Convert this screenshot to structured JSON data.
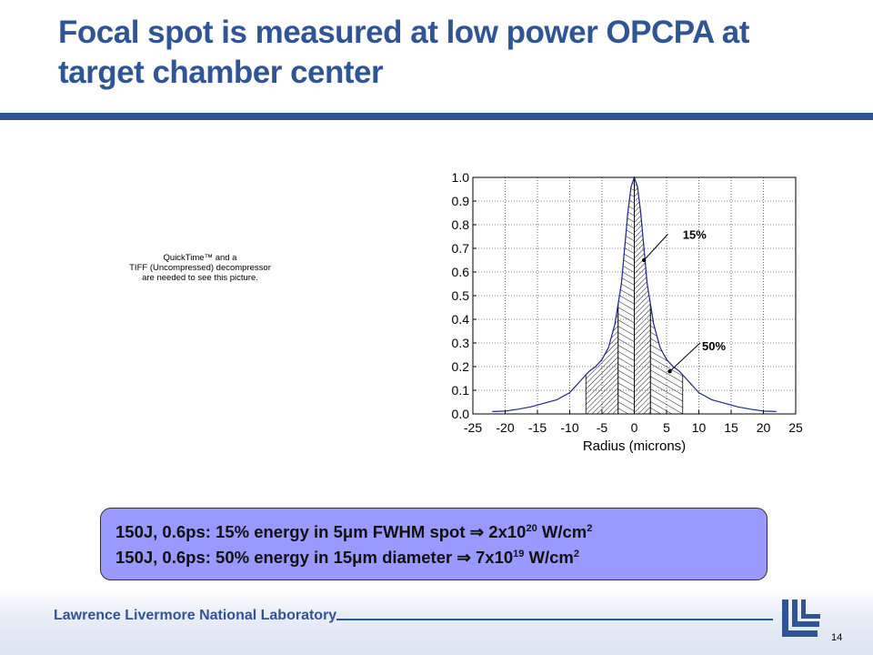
{
  "slide": {
    "title": "Focal spot is measured at low power OPCPA at target chamber center",
    "image_placeholder": [
      "QuickTime™ and a",
      "TIFF (Uncompressed) decompressor",
      "are needed to see this picture."
    ],
    "callout": {
      "line1": {
        "pre": "150J, 0.6ps: 15% energy in 5μm FWHM spot ",
        "arrow": "⇒",
        "val": " 2x10",
        "exp": "20",
        "unit": " W/cm",
        "unit_exp": "2"
      },
      "line2": {
        "pre": "150J, 0.6ps: 50% energy in 15μm diameter ",
        "arrow": "⇒",
        "val": " 7x10",
        "exp": "19",
        "unit": " W/cm",
        "unit_exp": "2"
      }
    },
    "footer": {
      "lab_name": "Lawrence Livermore National Laboratory",
      "page_number": "14"
    },
    "colors": {
      "brand_blue": "#2f5597",
      "callout_fill": "#9999ff",
      "curve": "#1f2a8a"
    }
  },
  "chart_data": {
    "type": "line",
    "xlabel": "Radius (microns)",
    "ylabel": "",
    "xlim": [
      -25,
      25
    ],
    "ylim": [
      0,
      1.0
    ],
    "x_ticks": [
      "-25",
      "-20",
      "-15",
      "-10",
      "-5",
      "0",
      "5",
      "10",
      "15",
      "20",
      "25"
    ],
    "y_ticks": [
      "0.0",
      "0.1",
      "0.2",
      "0.3",
      "0.4",
      "0.5",
      "0.6",
      "0.7",
      "0.8",
      "0.9",
      "1.0"
    ],
    "grid": true,
    "series": [
      {
        "x": [
          -22,
          -20,
          -18,
          -16,
          -14,
          -12,
          -10,
          -9,
          -8,
          -7,
          -6,
          -5,
          -4,
          -3,
          -2,
          -1.5,
          -1,
          -0.5,
          0,
          0.5,
          1,
          1.5,
          2,
          3,
          4,
          5,
          6,
          7,
          8,
          9,
          10,
          12,
          14,
          16,
          18,
          20,
          22
        ],
        "y": [
          0.01,
          0.012,
          0.02,
          0.03,
          0.045,
          0.06,
          0.09,
          0.12,
          0.15,
          0.18,
          0.2,
          0.23,
          0.28,
          0.38,
          0.55,
          0.7,
          0.85,
          0.96,
          1.0,
          0.96,
          0.85,
          0.7,
          0.55,
          0.38,
          0.28,
          0.23,
          0.2,
          0.18,
          0.15,
          0.12,
          0.09,
          0.06,
          0.045,
          0.03,
          0.02,
          0.012,
          0.01
        ]
      }
    ],
    "shaded_regions": [
      {
        "label": "15%",
        "x_range": [
          -2.5,
          2.5
        ]
      },
      {
        "label": "50%",
        "x_range": [
          -7.5,
          7.5
        ]
      }
    ],
    "annotations": [
      {
        "text": "15%",
        "points_to": [
          1.5,
          0.65
        ]
      },
      {
        "text": "50%",
        "points_to": [
          5.5,
          0.18
        ]
      }
    ]
  }
}
